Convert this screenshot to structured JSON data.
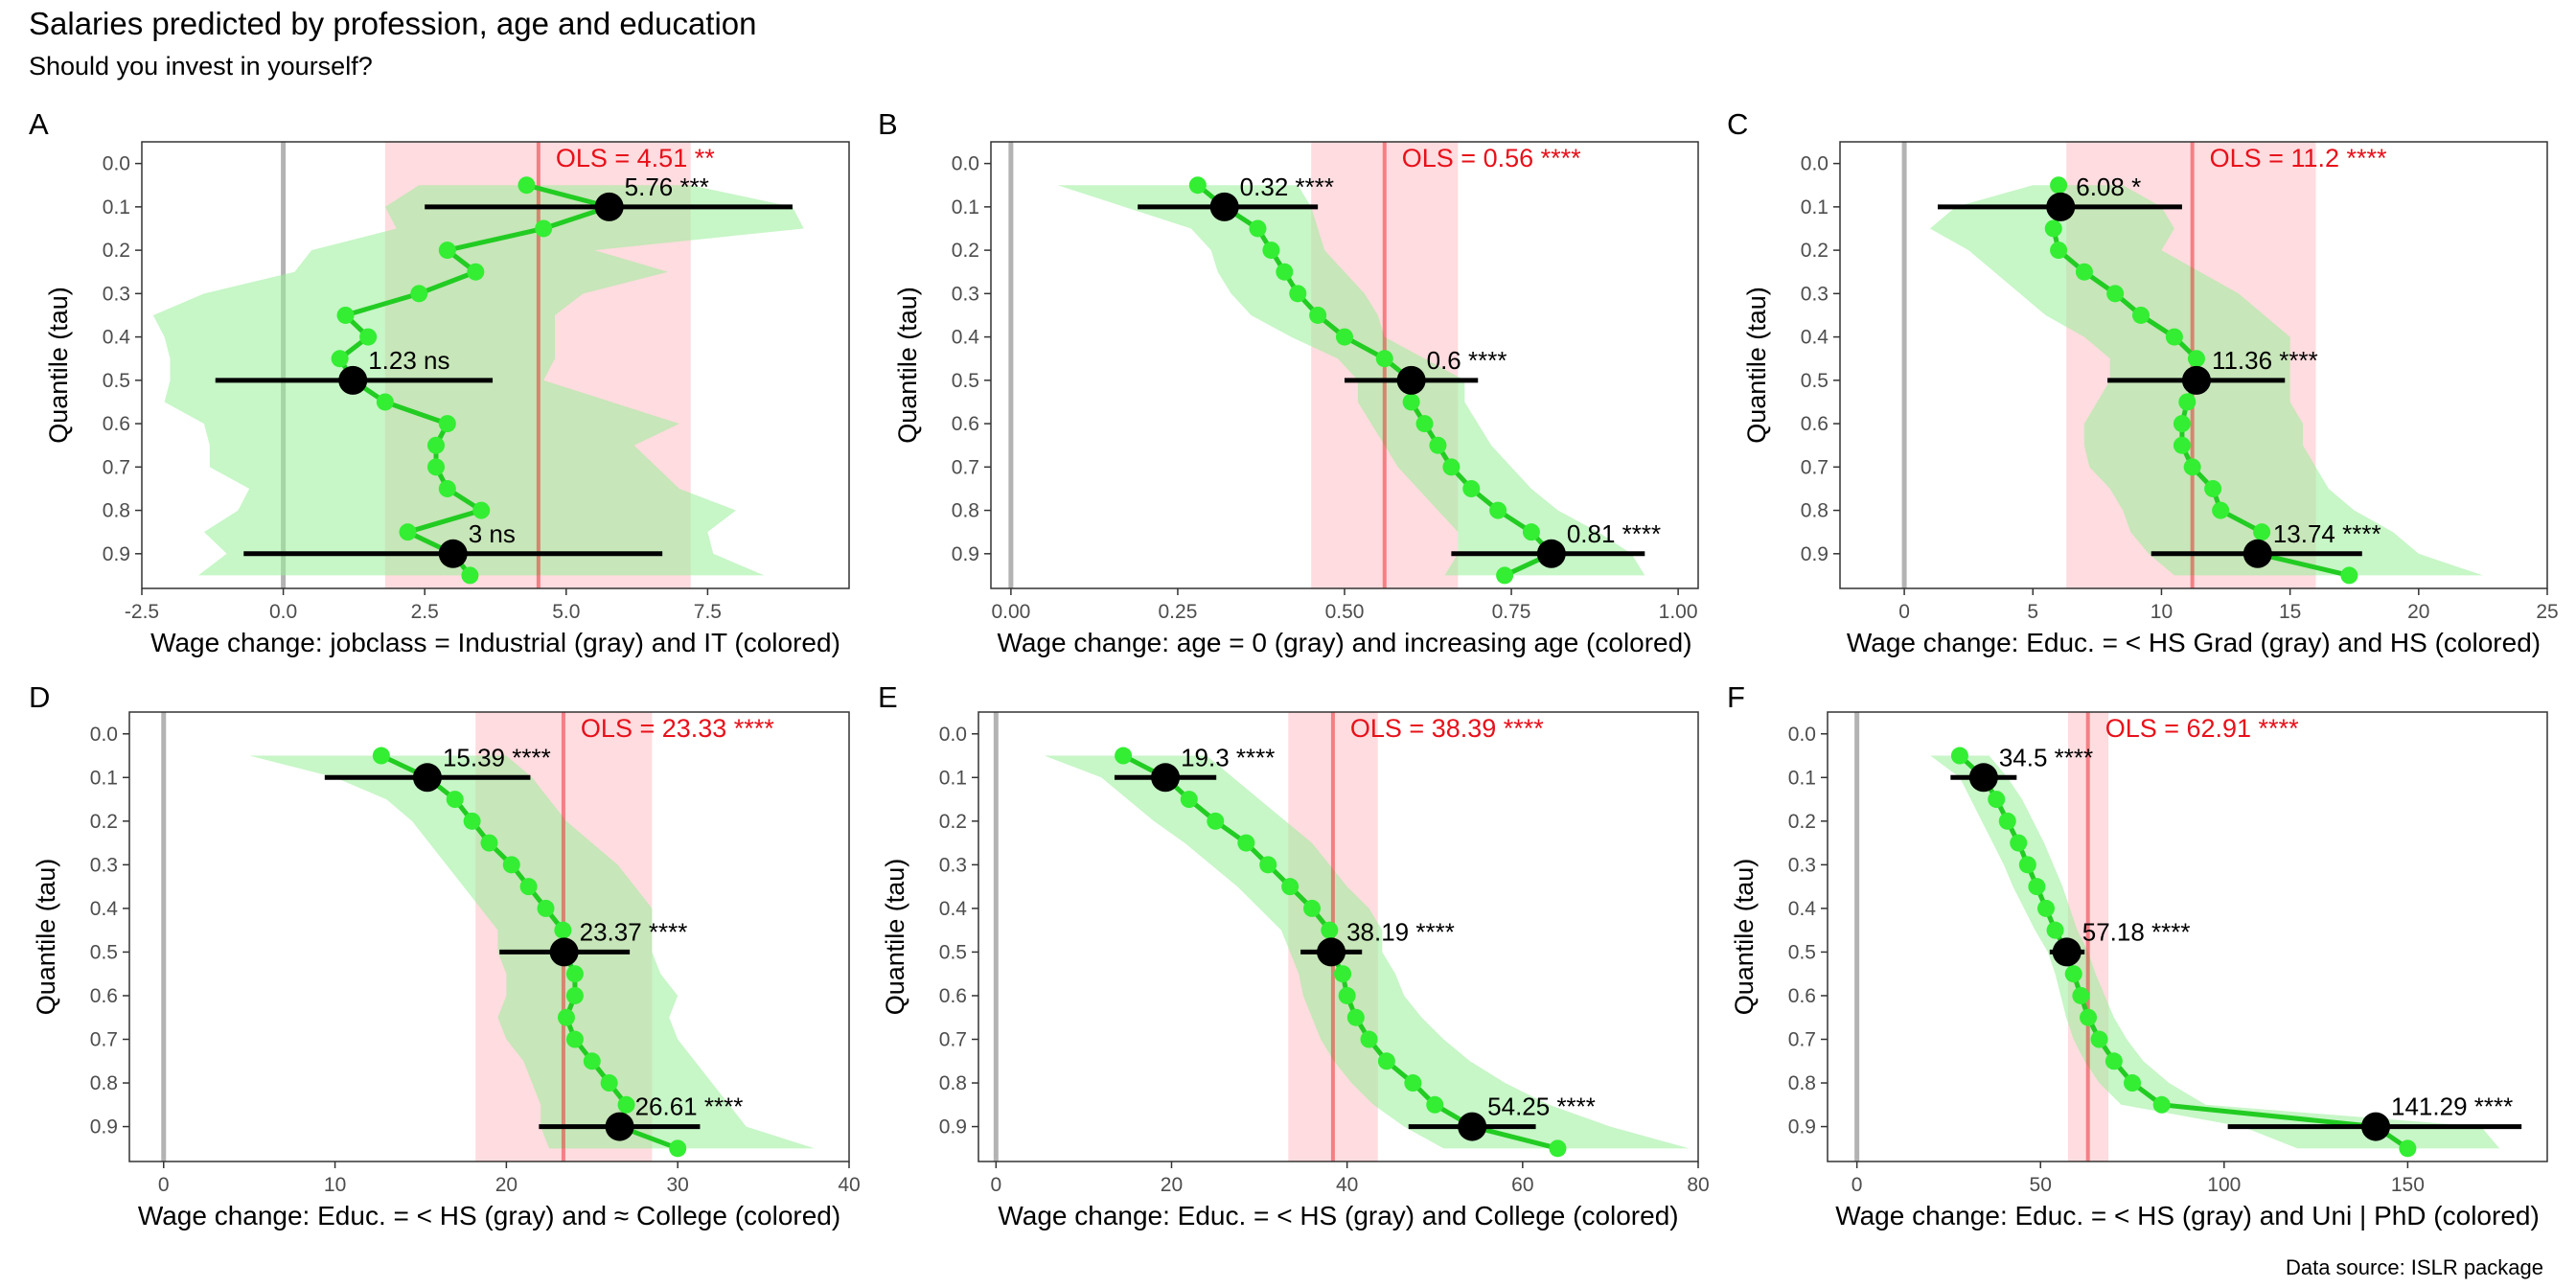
{
  "title": "Salaries predicted by profession, age and education",
  "subtitle": "Should you invest in yourself?",
  "caption": "Data source: ISLR package",
  "colors": {
    "quantile_line": "#22cc22",
    "quantile_point": "#33ee33",
    "quantile_band": "#99ee99",
    "ols": "#e8101a",
    "ols_band": "#ffc0c5",
    "zero_line": "#b3b3b3",
    "highlight_point": "#000000"
  },
  "chart_data": [
    {
      "panel": "A",
      "type": "line",
      "xlabel": "Wage change: jobclass = Industrial (gray) and IT (colored)",
      "ylabel": "Quantile (tau)",
      "xlim": [
        -2.5,
        10
      ],
      "ylim": [
        -0.05,
        0.98
      ],
      "xticks": [
        -2.5,
        0,
        2.5,
        5,
        7.5
      ],
      "xtick_labels": [
        "-2.5",
        "0.0",
        "2.5",
        "5.0",
        "7.5"
      ],
      "yticks": [
        0.0,
        0.1,
        0.2,
        0.3,
        0.4,
        0.5,
        0.6,
        0.7,
        0.8,
        0.9
      ],
      "ytick_labels": [
        "0.0",
        "0.1",
        "0.2",
        "0.3",
        "0.4",
        "0.5",
        "0.6",
        "0.7",
        "0.8",
        "0.9"
      ],
      "zero": 0,
      "ols": {
        "value": 4.51,
        "low": 1.8,
        "high": 7.2,
        "label": "OLS =  4.51 **"
      },
      "quantiles": {
        "tau": [
          0.05,
          0.1,
          0.15,
          0.2,
          0.25,
          0.3,
          0.35,
          0.4,
          0.45,
          0.5,
          0.55,
          0.6,
          0.65,
          0.7,
          0.75,
          0.8,
          0.85,
          0.9,
          0.95
        ],
        "value": [
          4.3,
          5.76,
          4.6,
          2.9,
          3.4,
          2.4,
          1.1,
          1.5,
          1.0,
          1.23,
          1.8,
          2.9,
          2.7,
          2.7,
          2.9,
          3.5,
          2.2,
          3.0,
          3.3
        ],
        "low": [
          2.4,
          1.8,
          2.0,
          0.5,
          0.2,
          -1.4,
          -2.3,
          -2.1,
          -2.0,
          -2.0,
          -2.1,
          -1.4,
          -1.3,
          -1.3,
          -0.6,
          -0.8,
          -1.4,
          -1.0,
          -1.5
        ],
        "high": [
          7.2,
          9.0,
          9.2,
          5.5,
          6.8,
          5.3,
          4.8,
          4.8,
          4.8,
          4.6,
          5.8,
          7.0,
          6.2,
          6.6,
          7.0,
          8.0,
          7.5,
          7.6,
          8.5
        ]
      },
      "highlights": [
        {
          "tau": 0.1,
          "value": 5.76,
          "low": 2.5,
          "high": 9.0,
          "label": "5.76 ***"
        },
        {
          "tau": 0.5,
          "value": 1.23,
          "low": -1.2,
          "high": 3.7,
          "label": "1.23 ns"
        },
        {
          "tau": 0.9,
          "value": 3.0,
          "low": -0.7,
          "high": 6.7,
          "label": "3 ns"
        }
      ]
    },
    {
      "panel": "B",
      "type": "line",
      "xlabel": "Wage change: age = 0 (gray) and increasing age (colored)",
      "ylabel": "Quantile (tau)",
      "xlim": [
        -0.03,
        1.03
      ],
      "ylim": [
        -0.05,
        0.98
      ],
      "xticks": [
        0,
        0.25,
        0.5,
        0.75,
        1.0
      ],
      "xtick_labels": [
        "0.00",
        "0.25",
        "0.50",
        "0.75",
        "1.00"
      ],
      "yticks": [
        0.0,
        0.1,
        0.2,
        0.3,
        0.4,
        0.5,
        0.6,
        0.7,
        0.8,
        0.9
      ],
      "ytick_labels": [
        "0.0",
        "0.1",
        "0.2",
        "0.3",
        "0.4",
        "0.5",
        "0.6",
        "0.7",
        "0.8",
        "0.9"
      ],
      "zero": 0,
      "ols": {
        "value": 0.56,
        "low": 0.45,
        "high": 0.67,
        "label": "OLS =  0.56 ****"
      },
      "quantiles": {
        "tau": [
          0.05,
          0.1,
          0.15,
          0.2,
          0.25,
          0.3,
          0.35,
          0.4,
          0.45,
          0.5,
          0.55,
          0.6,
          0.65,
          0.7,
          0.75,
          0.8,
          0.85,
          0.9,
          0.95
        ],
        "value": [
          0.28,
          0.32,
          0.37,
          0.39,
          0.41,
          0.43,
          0.46,
          0.5,
          0.56,
          0.6,
          0.6,
          0.62,
          0.64,
          0.66,
          0.69,
          0.73,
          0.78,
          0.81,
          0.74
        ],
        "low": [
          0.07,
          0.17,
          0.27,
          0.3,
          0.31,
          0.33,
          0.36,
          0.42,
          0.49,
          0.52,
          0.52,
          0.54,
          0.56,
          0.58,
          0.61,
          0.64,
          0.67,
          0.67,
          0.65
        ],
        "high": [
          0.43,
          0.45,
          0.46,
          0.47,
          0.5,
          0.53,
          0.55,
          0.56,
          0.62,
          0.68,
          0.68,
          0.7,
          0.72,
          0.75,
          0.78,
          0.82,
          0.88,
          0.93,
          0.95
        ]
      },
      "highlights": [
        {
          "tau": 0.1,
          "value": 0.32,
          "low": 0.19,
          "high": 0.46,
          "label": "0.32 ****"
        },
        {
          "tau": 0.5,
          "value": 0.6,
          "low": 0.5,
          "high": 0.7,
          "label": "0.6 ****"
        },
        {
          "tau": 0.9,
          "value": 0.81,
          "low": 0.66,
          "high": 0.95,
          "label": "0.81 ****"
        }
      ]
    },
    {
      "panel": "C",
      "type": "line",
      "xlabel": "Wage change: Educ. = < HS Grad (gray) and HS (colored)",
      "ylabel": "Quantile (tau)",
      "xlim": [
        -2.5,
        25
      ],
      "ylim": [
        -0.05,
        0.98
      ],
      "xticks": [
        0,
        5,
        10,
        15,
        20,
        25
      ],
      "xtick_labels": [
        "0",
        "5",
        "10",
        "15",
        "20",
        "25"
      ],
      "yticks": [
        0.0,
        0.1,
        0.2,
        0.3,
        0.4,
        0.5,
        0.6,
        0.7,
        0.8,
        0.9
      ],
      "ytick_labels": [
        "0.0",
        "0.1",
        "0.2",
        "0.3",
        "0.4",
        "0.5",
        "0.6",
        "0.7",
        "0.8",
        "0.9"
      ],
      "zero": 0,
      "ols": {
        "value": 11.2,
        "low": 6.3,
        "high": 16.0,
        "label": "OLS =  11.2 ****"
      },
      "quantiles": {
        "tau": [
          0.05,
          0.1,
          0.15,
          0.2,
          0.25,
          0.3,
          0.35,
          0.4,
          0.45,
          0.5,
          0.55,
          0.6,
          0.65,
          0.7,
          0.75,
          0.8,
          0.85,
          0.9,
          0.95
        ],
        "value": [
          6.0,
          6.08,
          5.8,
          6.0,
          7.0,
          8.2,
          9.2,
          10.5,
          11.36,
          11.36,
          11.0,
          10.8,
          10.8,
          11.2,
          12.0,
          12.3,
          13.9,
          13.74,
          17.3
        ],
        "low": [
          5.0,
          2.0,
          1.0,
          2.5,
          3.5,
          4.5,
          5.5,
          7.0,
          8.0,
          8.0,
          7.5,
          7.0,
          7.0,
          7.2,
          8.0,
          8.5,
          8.8,
          9.5,
          10.5
        ],
        "high": [
          8.5,
          10.0,
          10.5,
          10.0,
          11.5,
          13.0,
          14.0,
          15.0,
          15.0,
          15.0,
          15.0,
          15.5,
          15.5,
          16.0,
          16.5,
          17.5,
          19.0,
          20.0,
          22.5
        ]
      },
      "highlights": [
        {
          "tau": 0.1,
          "value": 6.08,
          "low": 1.3,
          "high": 10.8,
          "label": "6.08 *"
        },
        {
          "tau": 0.5,
          "value": 11.36,
          "low": 7.9,
          "high": 14.8,
          "label": "11.36 ****"
        },
        {
          "tau": 0.9,
          "value": 13.74,
          "low": 9.6,
          "high": 17.8,
          "label": "13.74 ****"
        }
      ]
    },
    {
      "panel": "D",
      "type": "line",
      "xlabel": "Wage change: Educ. = < HS (gray) and ≈ College (colored)",
      "ylabel": "Quantile (tau)",
      "xlim": [
        -2,
        40
      ],
      "ylim": [
        -0.05,
        0.98
      ],
      "xticks": [
        0,
        10,
        20,
        30,
        40
      ],
      "xtick_labels": [
        "0",
        "10",
        "20",
        "30",
        "40"
      ],
      "yticks": [
        0.0,
        0.1,
        0.2,
        0.3,
        0.4,
        0.5,
        0.6,
        0.7,
        0.8,
        0.9
      ],
      "ytick_labels": [
        "0.0",
        "0.1",
        "0.2",
        "0.3",
        "0.4",
        "0.5",
        "0.6",
        "0.7",
        "0.8",
        "0.9"
      ],
      "zero": 0,
      "ols": {
        "value": 23.33,
        "low": 18.2,
        "high": 28.5,
        "label": "OLS =  23.33 ****"
      },
      "quantiles": {
        "tau": [
          0.05,
          0.1,
          0.15,
          0.2,
          0.25,
          0.3,
          0.35,
          0.4,
          0.45,
          0.5,
          0.55,
          0.6,
          0.65,
          0.7,
          0.75,
          0.8,
          0.85,
          0.9,
          0.95
        ],
        "value": [
          12.7,
          15.39,
          17.0,
          18.0,
          19.0,
          20.3,
          21.3,
          22.3,
          23.3,
          23.37,
          24.0,
          24.0,
          23.5,
          24.0,
          25.0,
          26.0,
          27.0,
          26.61,
          30.0
        ],
        "low": [
          5.0,
          10.0,
          13.0,
          14.5,
          15.5,
          16.5,
          17.5,
          18.5,
          19.5,
          19.5,
          20.0,
          20.0,
          19.5,
          20.0,
          21.0,
          21.5,
          22.0,
          22.0,
          22.5
        ],
        "high": [
          20.0,
          21.5,
          22.5,
          23.5,
          25.0,
          26.5,
          27.5,
          28.5,
          28.5,
          28.5,
          29.0,
          30.0,
          29.5,
          30.0,
          31.0,
          32.0,
          33.0,
          34.0,
          38.0
        ]
      },
      "highlights": [
        {
          "tau": 0.1,
          "value": 15.39,
          "low": 9.4,
          "high": 21.4,
          "label": "15.39 ****"
        },
        {
          "tau": 0.5,
          "value": 23.37,
          "low": 19.6,
          "high": 27.2,
          "label": "23.37 ****"
        },
        {
          "tau": 0.9,
          "value": 26.61,
          "low": 21.9,
          "high": 31.3,
          "label": "26.61 ****"
        }
      ]
    },
    {
      "panel": "E",
      "type": "line",
      "xlabel": "Wage change: Educ. = < HS (gray) and College (colored)",
      "ylabel": "Quantile (tau)",
      "xlim": [
        -2,
        80
      ],
      "ylim": [
        -0.05,
        0.98
      ],
      "xticks": [
        0,
        20,
        40,
        60,
        80
      ],
      "xtick_labels": [
        "0",
        "20",
        "40",
        "60",
        "80"
      ],
      "yticks": [
        0.0,
        0.1,
        0.2,
        0.3,
        0.4,
        0.5,
        0.6,
        0.7,
        0.8,
        0.9
      ],
      "ytick_labels": [
        "0.0",
        "0.1",
        "0.2",
        "0.3",
        "0.4",
        "0.5",
        "0.6",
        "0.7",
        "0.8",
        "0.9"
      ],
      "zero": 0,
      "ols": {
        "value": 38.39,
        "low": 33.3,
        "high": 43.5,
        "label": "OLS =  38.39 ****"
      },
      "quantiles": {
        "tau": [
          0.05,
          0.1,
          0.15,
          0.2,
          0.25,
          0.3,
          0.35,
          0.4,
          0.45,
          0.5,
          0.55,
          0.6,
          0.65,
          0.7,
          0.75,
          0.8,
          0.85,
          0.9,
          0.95
        ],
        "value": [
          14.5,
          19.3,
          22.0,
          25.0,
          28.5,
          31.0,
          33.5,
          36.0,
          38.0,
          38.19,
          39.5,
          40.0,
          41.0,
          42.5,
          44.5,
          47.5,
          50.0,
          54.25,
          64.0
        ],
        "low": [
          5.5,
          12.0,
          15.0,
          18.0,
          21.5,
          24.5,
          27.5,
          30.0,
          32.5,
          33.5,
          34.5,
          35.0,
          36.0,
          37.0,
          38.5,
          40.5,
          43.0,
          46.5,
          51.0
        ],
        "high": [
          24.0,
          27.0,
          30.0,
          33.0,
          36.0,
          38.0,
          40.0,
          42.5,
          44.0,
          44.0,
          45.5,
          46.5,
          48.5,
          51.0,
          54.0,
          58.0,
          63.0,
          70.0,
          79.0
        ]
      },
      "highlights": [
        {
          "tau": 0.1,
          "value": 19.3,
          "low": 13.5,
          "high": 25.1,
          "label": "19.3 ****"
        },
        {
          "tau": 0.5,
          "value": 38.19,
          "low": 34.7,
          "high": 41.7,
          "label": "38.19 ****"
        },
        {
          "tau": 0.9,
          "value": 54.25,
          "low": 47.0,
          "high": 61.5,
          "label": "54.25 ****"
        }
      ]
    },
    {
      "panel": "F",
      "type": "line",
      "xlabel": "Wage change: Educ. = < HS (gray) and Uni | PhD (colored)",
      "ylabel": "Quantile (tau)",
      "xlim": [
        -8,
        188
      ],
      "ylim": [
        -0.05,
        0.98
      ],
      "xticks": [
        0,
        50,
        100,
        150
      ],
      "xtick_labels": [
        "0",
        "50",
        "100",
        "150"
      ],
      "yticks": [
        0.0,
        0.1,
        0.2,
        0.3,
        0.4,
        0.5,
        0.6,
        0.7,
        0.8,
        0.9
      ],
      "ytick_labels": [
        "0.0",
        "0.1",
        "0.2",
        "0.3",
        "0.4",
        "0.5",
        "0.6",
        "0.7",
        "0.8",
        "0.9"
      ],
      "zero": 0,
      "ols": {
        "value": 62.91,
        "low": 57.5,
        "high": 68.5,
        "label": "OLS =  62.91 ****"
      },
      "quantiles": {
        "tau": [
          0.05,
          0.1,
          0.15,
          0.2,
          0.25,
          0.3,
          0.35,
          0.4,
          0.45,
          0.5,
          0.55,
          0.6,
          0.65,
          0.7,
          0.75,
          0.8,
          0.85,
          0.9,
          0.95
        ],
        "value": [
          28.0,
          34.5,
          38.0,
          41.0,
          44.0,
          46.5,
          49.0,
          51.5,
          54.0,
          57.18,
          59.0,
          61.0,
          63.0,
          66.0,
          70.0,
          75.0,
          83.0,
          141.29,
          150.0
        ],
        "low": [
          20.0,
          28.0,
          31.0,
          34.0,
          37.0,
          40.0,
          42.5,
          45.5,
          48.5,
          52.0,
          54.0,
          55.5,
          57.0,
          59.0,
          62.0,
          66.0,
          72.0,
          105.0,
          120.0
        ],
        "high": [
          36.0,
          41.0,
          45.0,
          48.0,
          51.0,
          53.5,
          56.0,
          58.0,
          60.0,
          63.0,
          65.0,
          67.5,
          70.0,
          73.5,
          78.0,
          85.0,
          95.0,
          170.0,
          175.0
        ]
      },
      "highlights": [
        {
          "tau": 0.1,
          "value": 34.5,
          "low": 25.5,
          "high": 43.5,
          "label": "34.5 ****"
        },
        {
          "tau": 0.5,
          "value": 57.18,
          "low": 52.5,
          "high": 62.0,
          "label": "57.18 ****"
        },
        {
          "tau": 0.9,
          "value": 141.29,
          "low": 101.0,
          "high": 181.0,
          "label": "141.29 ****"
        }
      ]
    }
  ]
}
